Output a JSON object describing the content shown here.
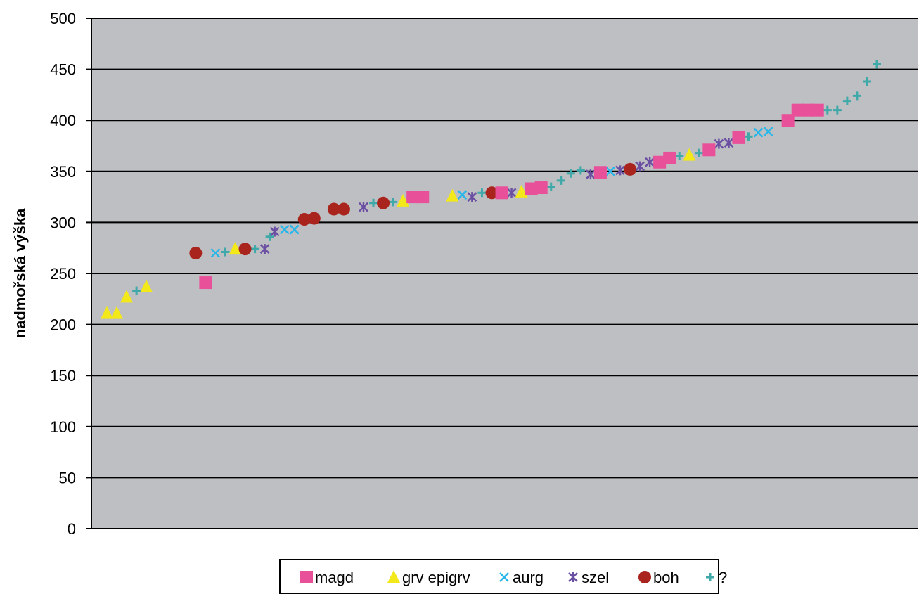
{
  "chart_data": {
    "type": "scatter",
    "ylabel": "nadmořská výška",
    "xlabel": "",
    "title": "",
    "ylim": [
      0,
      500
    ],
    "yticks": [
      "0",
      "50",
      "100",
      "150",
      "200",
      "250",
      "300",
      "350",
      "400",
      "450",
      "500"
    ],
    "grid": true,
    "legend_position": "bottom",
    "series": [
      {
        "name": "magd",
        "marker": "square",
        "color": "#e8519a",
        "points": [
          [
            10,
            241
          ],
          [
            31,
            325
          ],
          [
            32,
            325
          ],
          [
            40,
            329
          ],
          [
            43,
            333
          ],
          [
            44,
            334
          ],
          [
            50,
            349
          ],
          [
            56,
            359
          ],
          [
            57,
            363
          ],
          [
            61,
            371
          ],
          [
            64,
            383
          ],
          [
            69,
            400
          ],
          [
            70,
            410
          ],
          [
            71,
            410
          ],
          [
            72,
            410
          ]
        ]
      },
      {
        "name": "grv epigrv",
        "marker": "triangle",
        "color": "#f2e81a",
        "points": [
          [
            0,
            211
          ],
          [
            1,
            211
          ],
          [
            2,
            227
          ],
          [
            4,
            237
          ],
          [
            13,
            274
          ],
          [
            30,
            321
          ],
          [
            35,
            326
          ],
          [
            42,
            330
          ],
          [
            59,
            366
          ]
        ]
      },
      {
        "name": "aurg",
        "marker": "x",
        "color": "#29b6e8",
        "points": [
          [
            11,
            270
          ],
          [
            18,
            293
          ],
          [
            19,
            293
          ],
          [
            36,
            327
          ],
          [
            51,
            350
          ],
          [
            66,
            388
          ],
          [
            67,
            389
          ]
        ]
      },
      {
        "name": "szel",
        "marker": "star",
        "color": "#6a4fa3",
        "points": [
          [
            16,
            274
          ],
          [
            17,
            291
          ],
          [
            26,
            315
          ],
          [
            37,
            325
          ],
          [
            41,
            329
          ],
          [
            49,
            347
          ],
          [
            52,
            351
          ],
          [
            54,
            355
          ],
          [
            55,
            359
          ],
          [
            62,
            377
          ],
          [
            63,
            378
          ]
        ]
      },
      {
        "name": "boh",
        "marker": "circle",
        "color": "#a8241c",
        "points": [
          [
            9,
            270
          ],
          [
            14,
            274
          ],
          [
            20,
            303
          ],
          [
            21,
            304
          ],
          [
            23,
            313
          ],
          [
            24,
            313
          ],
          [
            28,
            319
          ],
          [
            39,
            329
          ],
          [
            53,
            352
          ]
        ]
      },
      {
        "name": "?",
        "marker": "plus",
        "color": "#3fa8a8",
        "points": [
          [
            3,
            233
          ],
          [
            12,
            271
          ],
          [
            15,
            274
          ],
          [
            16.5,
            286
          ],
          [
            27,
            319
          ],
          [
            29,
            320
          ],
          [
            38,
            329
          ],
          [
            45,
            335
          ],
          [
            46,
            341
          ],
          [
            47,
            348
          ],
          [
            48,
            351
          ],
          [
            58,
            365
          ],
          [
            60,
            368
          ],
          [
            65,
            384
          ],
          [
            73,
            410
          ],
          [
            74,
            410
          ],
          [
            75,
            419
          ],
          [
            76,
            424
          ],
          [
            77,
            438
          ],
          [
            78,
            455
          ]
        ]
      }
    ]
  }
}
